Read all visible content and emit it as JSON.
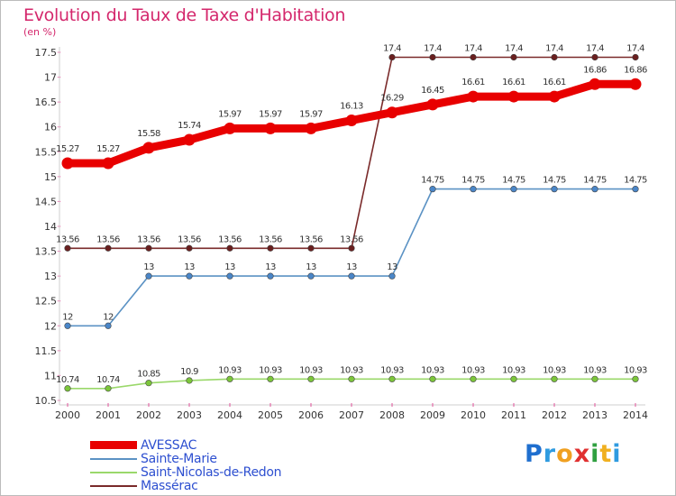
{
  "title": "Evolution du Taux de Taxe d'Habitation",
  "unit_label": "(en %)",
  "logo": {
    "text": "Proxiti",
    "letters": [
      {
        "ch": "P",
        "color": "#1f6fcf"
      },
      {
        "ch": "r",
        "color": "#2f9be0"
      },
      {
        "ch": "o",
        "color": "#f0a020"
      },
      {
        "ch": "x",
        "color": "#e03030"
      },
      {
        "ch": "i",
        "color": "#30a040"
      },
      {
        "ch": "t",
        "color": "#f0b020"
      },
      {
        "ch": "i",
        "color": "#2f9be0"
      }
    ]
  },
  "chart_data": {
    "type": "line",
    "title": "Evolution du Taux de Taxe d'Habitation",
    "ylabel": "(en %)",
    "xlabel": "",
    "x": [
      "2000",
      "2001",
      "2002",
      "2003",
      "2004",
      "2005",
      "2006",
      "2007",
      "2008",
      "2009",
      "2010",
      "2011",
      "2012",
      "2013",
      "2014"
    ],
    "ylim": [
      10.5,
      17.5
    ],
    "yticks": [
      "10.5",
      "11",
      "11.5",
      "12",
      "12.5",
      "13",
      "13.5",
      "14",
      "14.5",
      "15",
      "15.5",
      "16",
      "16.5",
      "17",
      "17.5"
    ],
    "grid": false,
    "legend_position": "bottom-left",
    "series": [
      {
        "name": "AVESSAC",
        "color": "#e80000",
        "emphasis": true,
        "values": [
          15.27,
          15.27,
          15.58,
          15.74,
          15.97,
          15.97,
          15.97,
          16.13,
          16.29,
          16.45,
          16.61,
          16.61,
          16.61,
          16.86,
          16.86
        ],
        "labels": [
          "15.27",
          "15.27",
          "15.58",
          "15.74",
          "15.97",
          "15.97",
          "15.97",
          "16.13",
          "16.29",
          "16.45",
          "16.61",
          "16.61",
          "16.61",
          "16.86",
          "16.86"
        ]
      },
      {
        "name": "Sainte-Marie",
        "color": "#5b92c4",
        "marker_color": "#4a86c8",
        "values": [
          12,
          12,
          13,
          13,
          13,
          13,
          13,
          13,
          13,
          14.75,
          14.75,
          14.75,
          14.75,
          14.75,
          14.75
        ],
        "labels": [
          "12",
          "12",
          "13",
          "13",
          "13",
          "13",
          "13",
          "13",
          "13",
          "14.75",
          "14.75",
          "14.75",
          "14.75",
          "14.75",
          "14.75"
        ]
      },
      {
        "name": "Saint-Nicolas-de-Redon",
        "color": "#9ad86a",
        "marker_color": "#7cc63a",
        "values": [
          10.74,
          10.74,
          10.85,
          10.9,
          10.93,
          10.93,
          10.93,
          10.93,
          10.93,
          10.93,
          10.93,
          10.93,
          10.93,
          10.93,
          10.93
        ],
        "labels": [
          "10.74",
          "10.74",
          "10.85",
          "10.9",
          "10.93",
          "10.93",
          "10.93",
          "10.93",
          "10.93",
          "10.93",
          "10.93",
          "10.93",
          "10.93",
          "10.93",
          "10.93"
        ]
      },
      {
        "name": "Massérac",
        "color": "#7a2a2a",
        "marker_color": "#6a1f1f",
        "values": [
          13.56,
          13.56,
          13.56,
          13.56,
          13.56,
          13.56,
          13.56,
          13.56,
          17.4,
          17.4,
          17.4,
          17.4,
          17.4,
          17.4,
          17.4
        ],
        "labels": [
          "13.56",
          "13.56",
          "13.56",
          "13.56",
          "13.56",
          "13.56",
          "13.56",
          "13.56",
          "17.4",
          "17.4",
          "17.4",
          "17.4",
          "17.4",
          "17.4",
          "17.4"
        ]
      }
    ]
  }
}
